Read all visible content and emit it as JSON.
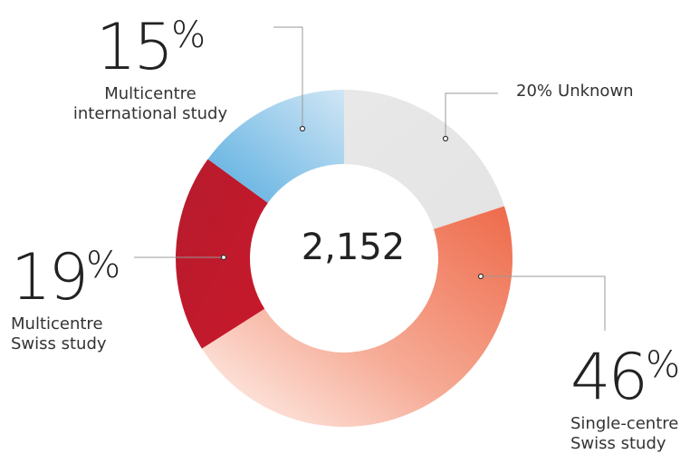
{
  "chart_data": {
    "type": "donut",
    "center_label": "2,152",
    "categories": [
      "Unknown",
      "Single-centre Swiss study",
      "Multicentre Swiss study",
      "Multicentre international study"
    ],
    "values": [
      20,
      46,
      19,
      15
    ],
    "value_labels": [
      "20%",
      "46%",
      "19%",
      "15%"
    ],
    "colors": [
      "#e6e6e6",
      "#ef6b4c",
      "#c0192c",
      "#6cb9e2"
    ]
  }
}
